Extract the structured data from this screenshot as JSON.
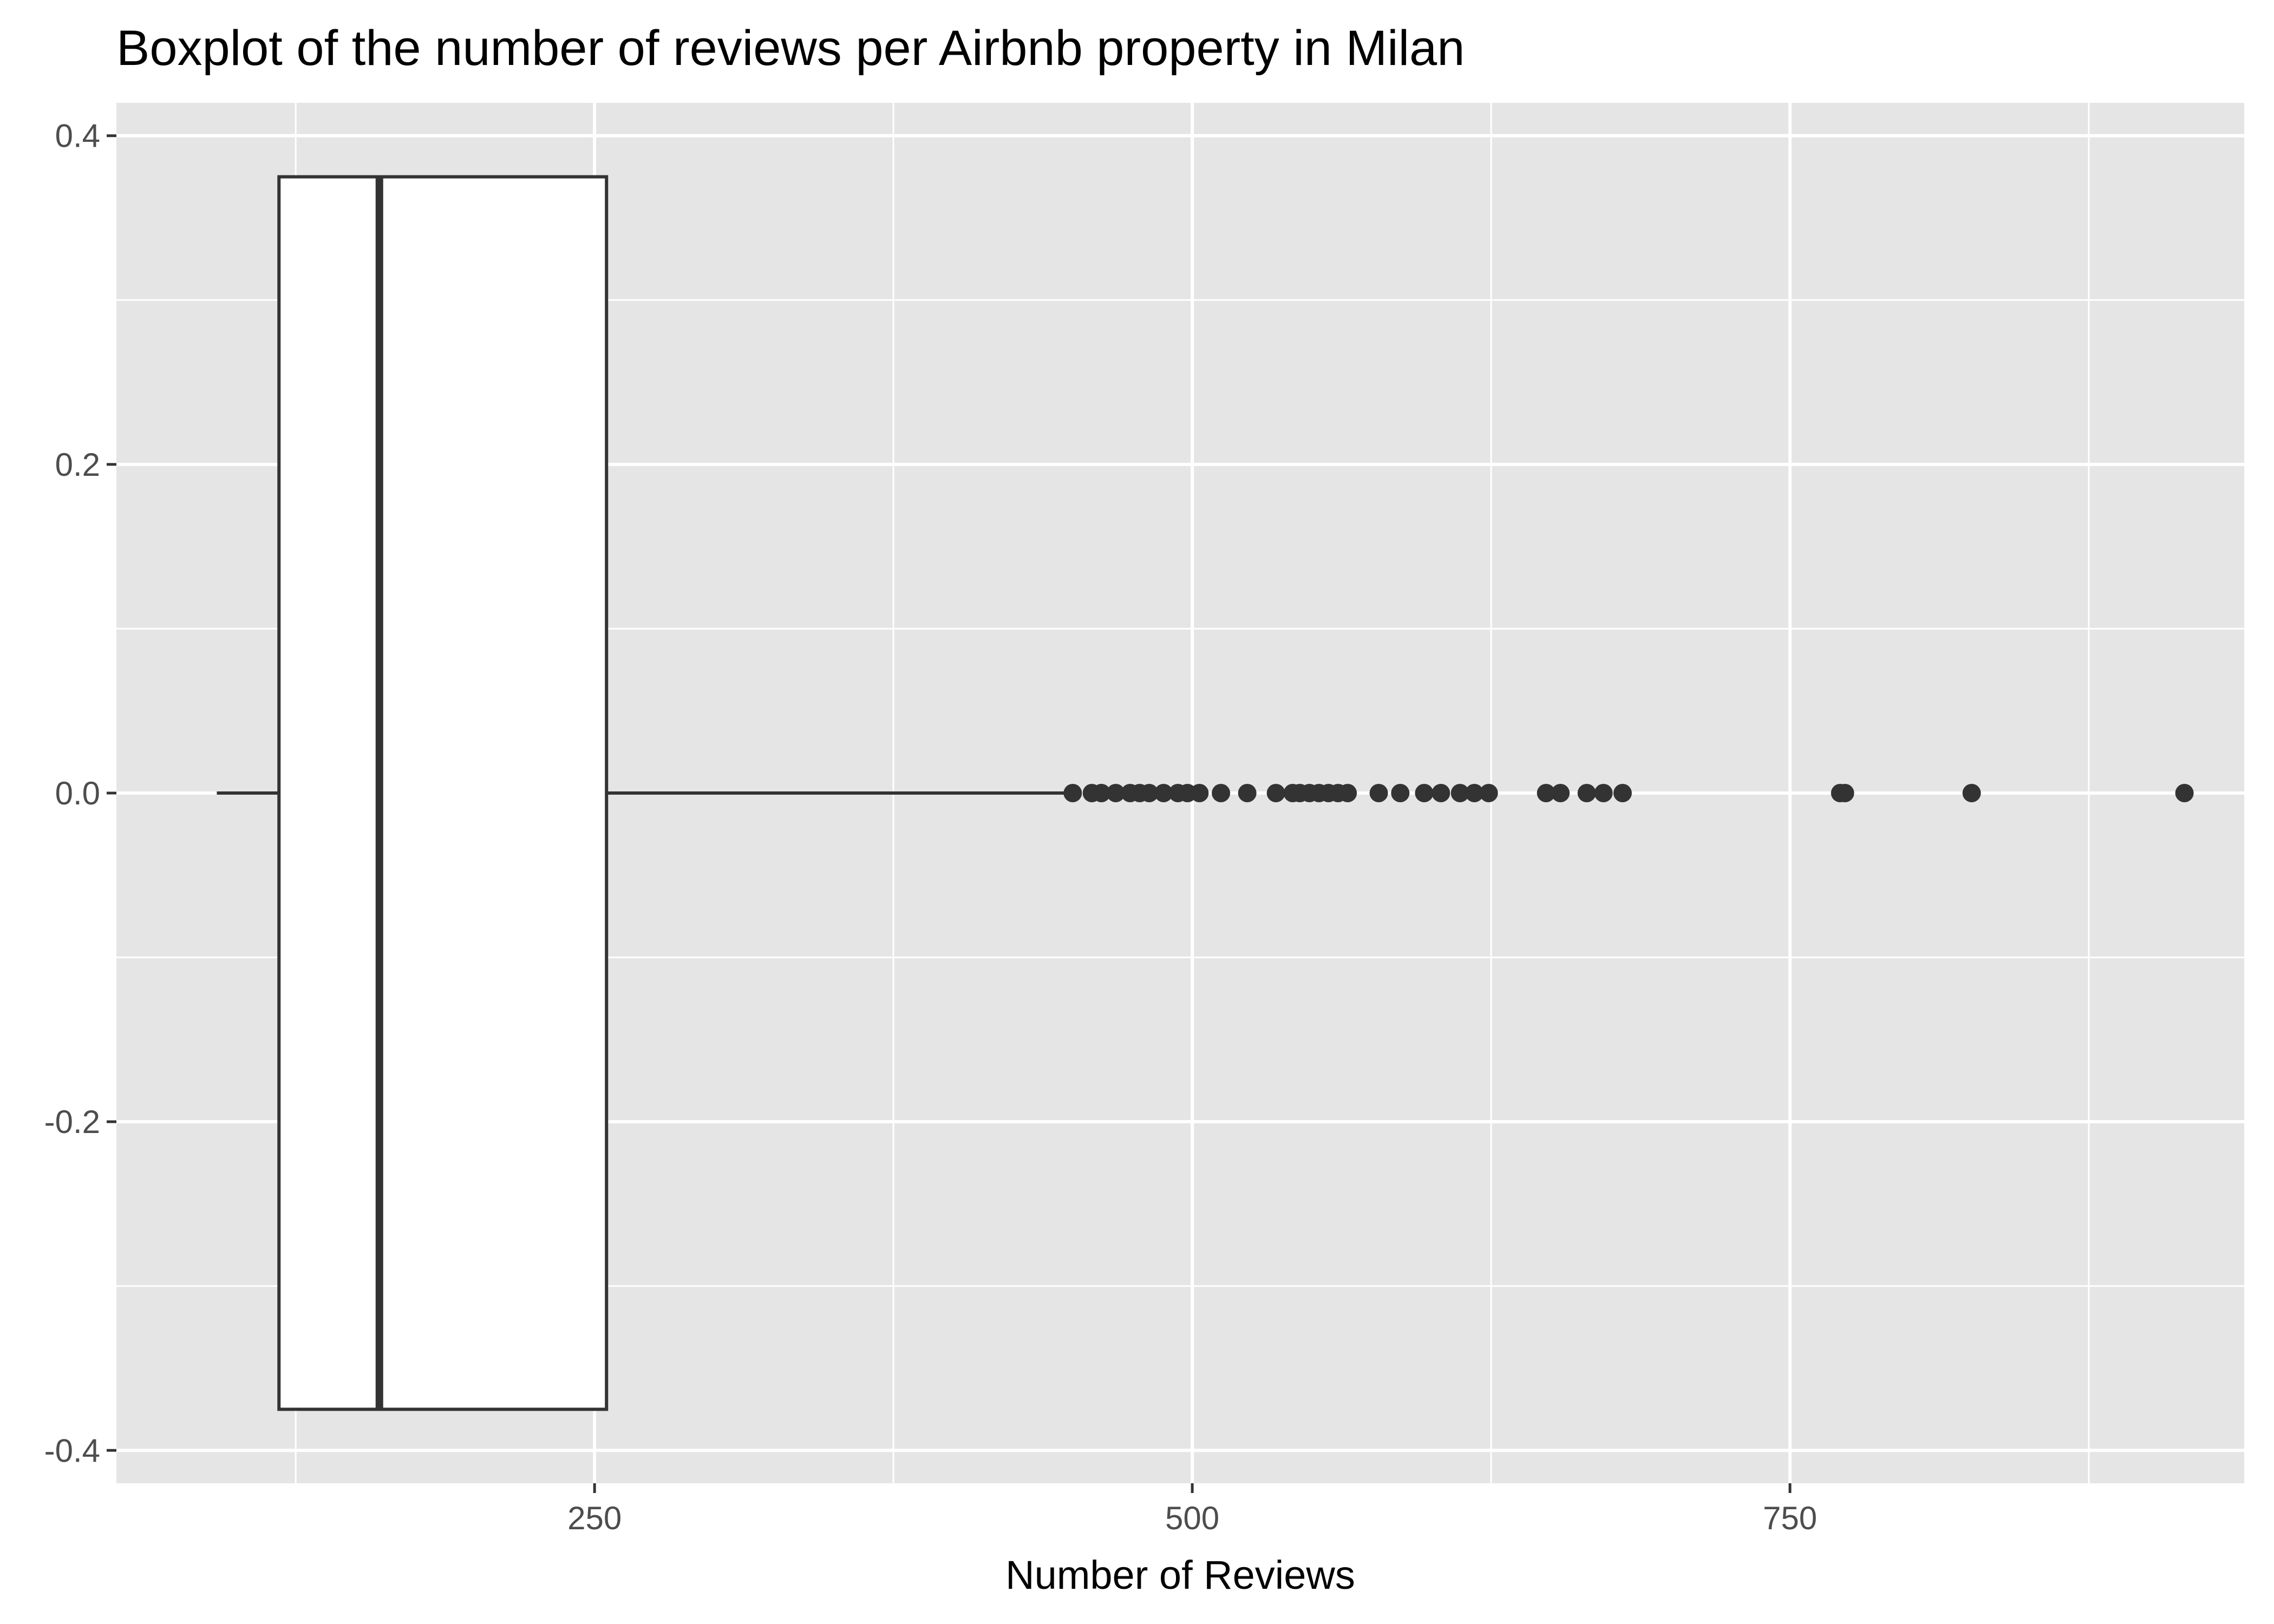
{
  "chart_data": {
    "type": "boxplot",
    "title": "Boxplot of the number of reviews per Airbnb property in Milan",
    "xlabel": "Number of Reviews",
    "ylabel": "",
    "xlim": [
      50,
      940
    ],
    "ylim": [
      -0.42,
      0.42
    ],
    "x_ticks": [
      250,
      500,
      750
    ],
    "x_tick_labels": [
      "250",
      "500",
      "750"
    ],
    "y_ticks": [
      -0.4,
      -0.2,
      0.0,
      0.2,
      0.4
    ],
    "y_tick_labels": [
      "-0.4",
      "-0.2",
      "0.0",
      "0.2",
      "0.4"
    ],
    "grid": true,
    "box": {
      "whisker_low": 92,
      "q1": 118,
      "median": 160,
      "q3": 255,
      "whisker_high": 450,
      "y_bottom": -0.375,
      "y_top": 0.375
    },
    "outliers": [
      450,
      458,
      462,
      468,
      474,
      478,
      482,
      488,
      494,
      498,
      503,
      512,
      523,
      535,
      542,
      545,
      549,
      553,
      557,
      561,
      565,
      578,
      587,
      597,
      604,
      612,
      618,
      624,
      648,
      654,
      665,
      672,
      680,
      771,
      773,
      826,
      915
    ],
    "colors": {
      "panel_background": "#e5e5e5",
      "grid": "#ffffff",
      "box_fill": "#ffffff",
      "box_stroke": "#333333",
      "point": "#333333"
    }
  }
}
